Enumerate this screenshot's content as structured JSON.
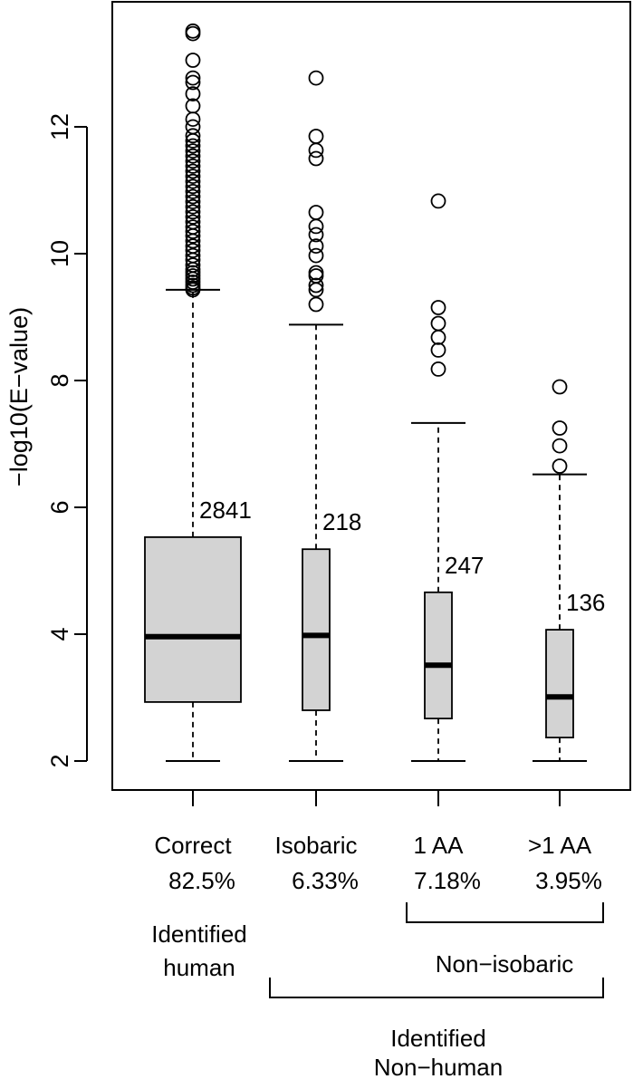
{
  "chart_data": {
    "type": "box",
    "ylabel": "−log10(E−value)",
    "ylim": [
      1.55,
      13.95
    ],
    "yticks": [
      2,
      4,
      6,
      8,
      10,
      12
    ],
    "ytick_labels": [
      "2",
      "4",
      "6",
      "8",
      "10",
      "12"
    ],
    "grid": false,
    "legend": "none",
    "box_fill": "#d3d3d3",
    "categories": [
      {
        "name": "Correct",
        "percent": "82.5%",
        "count": "2841",
        "whisker_low": 2.0,
        "q1": 2.93,
        "median": 3.96,
        "q3": 5.53,
        "whisker_high": 9.43,
        "outliers": [
          9.43,
          9.46,
          9.5,
          9.55,
          9.6,
          9.65,
          9.7,
          9.75,
          9.82,
          9.9,
          9.97,
          10.05,
          10.12,
          10.2,
          10.28,
          10.35,
          10.42,
          10.5,
          10.58,
          10.66,
          10.74,
          10.82,
          10.9,
          10.98,
          11.06,
          11.14,
          11.22,
          11.3,
          11.38,
          11.46,
          11.54,
          11.62,
          11.7,
          11.78,
          11.86,
          12.0,
          12.12,
          12.33,
          12.52,
          12.7,
          12.77,
          13.05,
          13.47,
          13.51
        ]
      },
      {
        "name": "Isobaric",
        "percent": "6.33%",
        "count": "218",
        "whisker_low": 2.0,
        "q1": 2.8,
        "median": 3.98,
        "q3": 5.34,
        "whisker_high": 8.88,
        "outliers": [
          9.2,
          9.43,
          9.5,
          9.65,
          9.7,
          9.97,
          10.12,
          10.3,
          10.43,
          10.65,
          11.5,
          11.63,
          11.85,
          12.77
        ]
      },
      {
        "name": "1 AA",
        "percent": "7.18%",
        "count": "247",
        "whisker_low": 2.0,
        "q1": 2.67,
        "median": 3.51,
        "q3": 4.66,
        "whisker_high": 7.33,
        "outliers": [
          8.18,
          8.48,
          8.68,
          8.9,
          9.15,
          10.83
        ]
      },
      {
        "name": ">1 AA",
        "percent": "3.95%",
        "count": "136",
        "whisker_low": 2.0,
        "q1": 2.37,
        "median": 3.01,
        "q3": 4.07,
        "whisker_high": 6.52,
        "outliers": [
          6.65,
          6.97,
          7.25,
          7.9
        ]
      }
    ],
    "groups": [
      {
        "label_lines": [
          "Identified",
          "human"
        ],
        "bracket": false
      },
      {
        "label_lines": [
          "Non−isobaric"
        ],
        "bracket": true
      },
      {
        "label_lines": [
          "Identified",
          "Non−human"
        ],
        "bracket": true
      }
    ]
  }
}
